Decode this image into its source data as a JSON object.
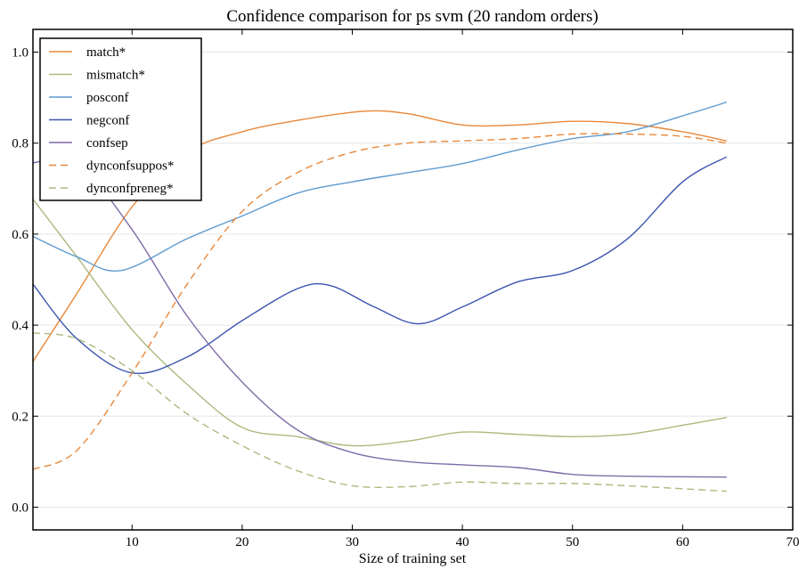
{
  "chart_data": {
    "type": "line",
    "title": "Confidence comparison for ps svm (20 random orders)",
    "xlabel": "Size of training set",
    "ylabel": "",
    "xlim": [
      1,
      70
    ],
    "ylim": [
      -0.05,
      1.05
    ],
    "xticks": [
      "10",
      "20",
      "30",
      "40",
      "50",
      "60",
      "70"
    ],
    "yticks": [
      "0.0",
      "0.2",
      "0.4",
      "0.6",
      "0.8",
      "1.0"
    ],
    "grid": "horizontal",
    "legend_position": "top-left",
    "series": [
      {
        "name": "match*",
        "color": "#e8883a",
        "style": "solid",
        "x": [
          1,
          5,
          10,
          15,
          20,
          25,
          31,
          35,
          40,
          45,
          50,
          55,
          60,
          64
        ],
        "y": [
          0.32,
          0.47,
          0.66,
          0.78,
          0.825,
          0.85,
          0.87,
          0.865,
          0.84,
          0.84,
          0.848,
          0.843,
          0.825,
          0.805
        ]
      },
      {
        "name": "mismatch*",
        "color": "#a9bb7e",
        "style": "solid",
        "x": [
          1,
          5,
          10,
          15,
          20,
          25,
          30,
          35,
          40,
          45,
          50,
          55,
          60,
          64
        ],
        "y": [
          0.677,
          0.55,
          0.39,
          0.27,
          0.175,
          0.155,
          0.135,
          0.145,
          0.165,
          0.16,
          0.155,
          0.16,
          0.18,
          0.197
        ]
      },
      {
        "name": "posconf",
        "color": "#5e9bcf",
        "style": "solid",
        "x": [
          1,
          5,
          9,
          15,
          20,
          25,
          30,
          35,
          40,
          45,
          50,
          55,
          60,
          64
        ],
        "y": [
          0.595,
          0.55,
          0.52,
          0.59,
          0.64,
          0.69,
          0.715,
          0.735,
          0.755,
          0.785,
          0.81,
          0.825,
          0.86,
          0.89
        ]
      },
      {
        "name": "negconf",
        "color": "#3d54b0",
        "style": "solid",
        "x": [
          1,
          5,
          10,
          15,
          20,
          25,
          28,
          32,
          36,
          40,
          45,
          50,
          55,
          60,
          64
        ],
        "y": [
          0.49,
          0.37,
          0.295,
          0.33,
          0.41,
          0.48,
          0.487,
          0.44,
          0.403,
          0.44,
          0.495,
          0.52,
          0.59,
          0.715,
          0.77
        ]
      },
      {
        "name": "confsep",
        "color": "#7f6ca8",
        "style": "solid",
        "x": [
          1,
          5,
          10,
          15,
          20,
          25,
          30,
          35,
          40,
          45,
          50,
          55,
          64
        ],
        "y": [
          0.757,
          0.757,
          0.61,
          0.42,
          0.275,
          0.17,
          0.12,
          0.1,
          0.093,
          0.087,
          0.072,
          0.068,
          0.066
        ]
      },
      {
        "name": "dynconfsuppos*",
        "color": "#e8883a",
        "style": "dashed",
        "x": [
          1,
          5,
          10,
          15,
          20,
          25,
          30,
          35,
          40,
          45,
          50,
          55,
          60,
          64
        ],
        "y": [
          0.083,
          0.125,
          0.295,
          0.49,
          0.65,
          0.735,
          0.78,
          0.8,
          0.805,
          0.81,
          0.82,
          0.82,
          0.815,
          0.8
        ]
      },
      {
        "name": "dynconfpreneg*",
        "color": "#a9bb7e",
        "style": "dashed",
        "x": [
          1,
          5,
          10,
          15,
          20,
          25,
          30,
          35,
          40,
          45,
          50,
          55,
          64
        ],
        "y": [
          0.383,
          0.37,
          0.3,
          0.205,
          0.135,
          0.08,
          0.047,
          0.045,
          0.055,
          0.052,
          0.052,
          0.047,
          0.035
        ]
      }
    ]
  }
}
